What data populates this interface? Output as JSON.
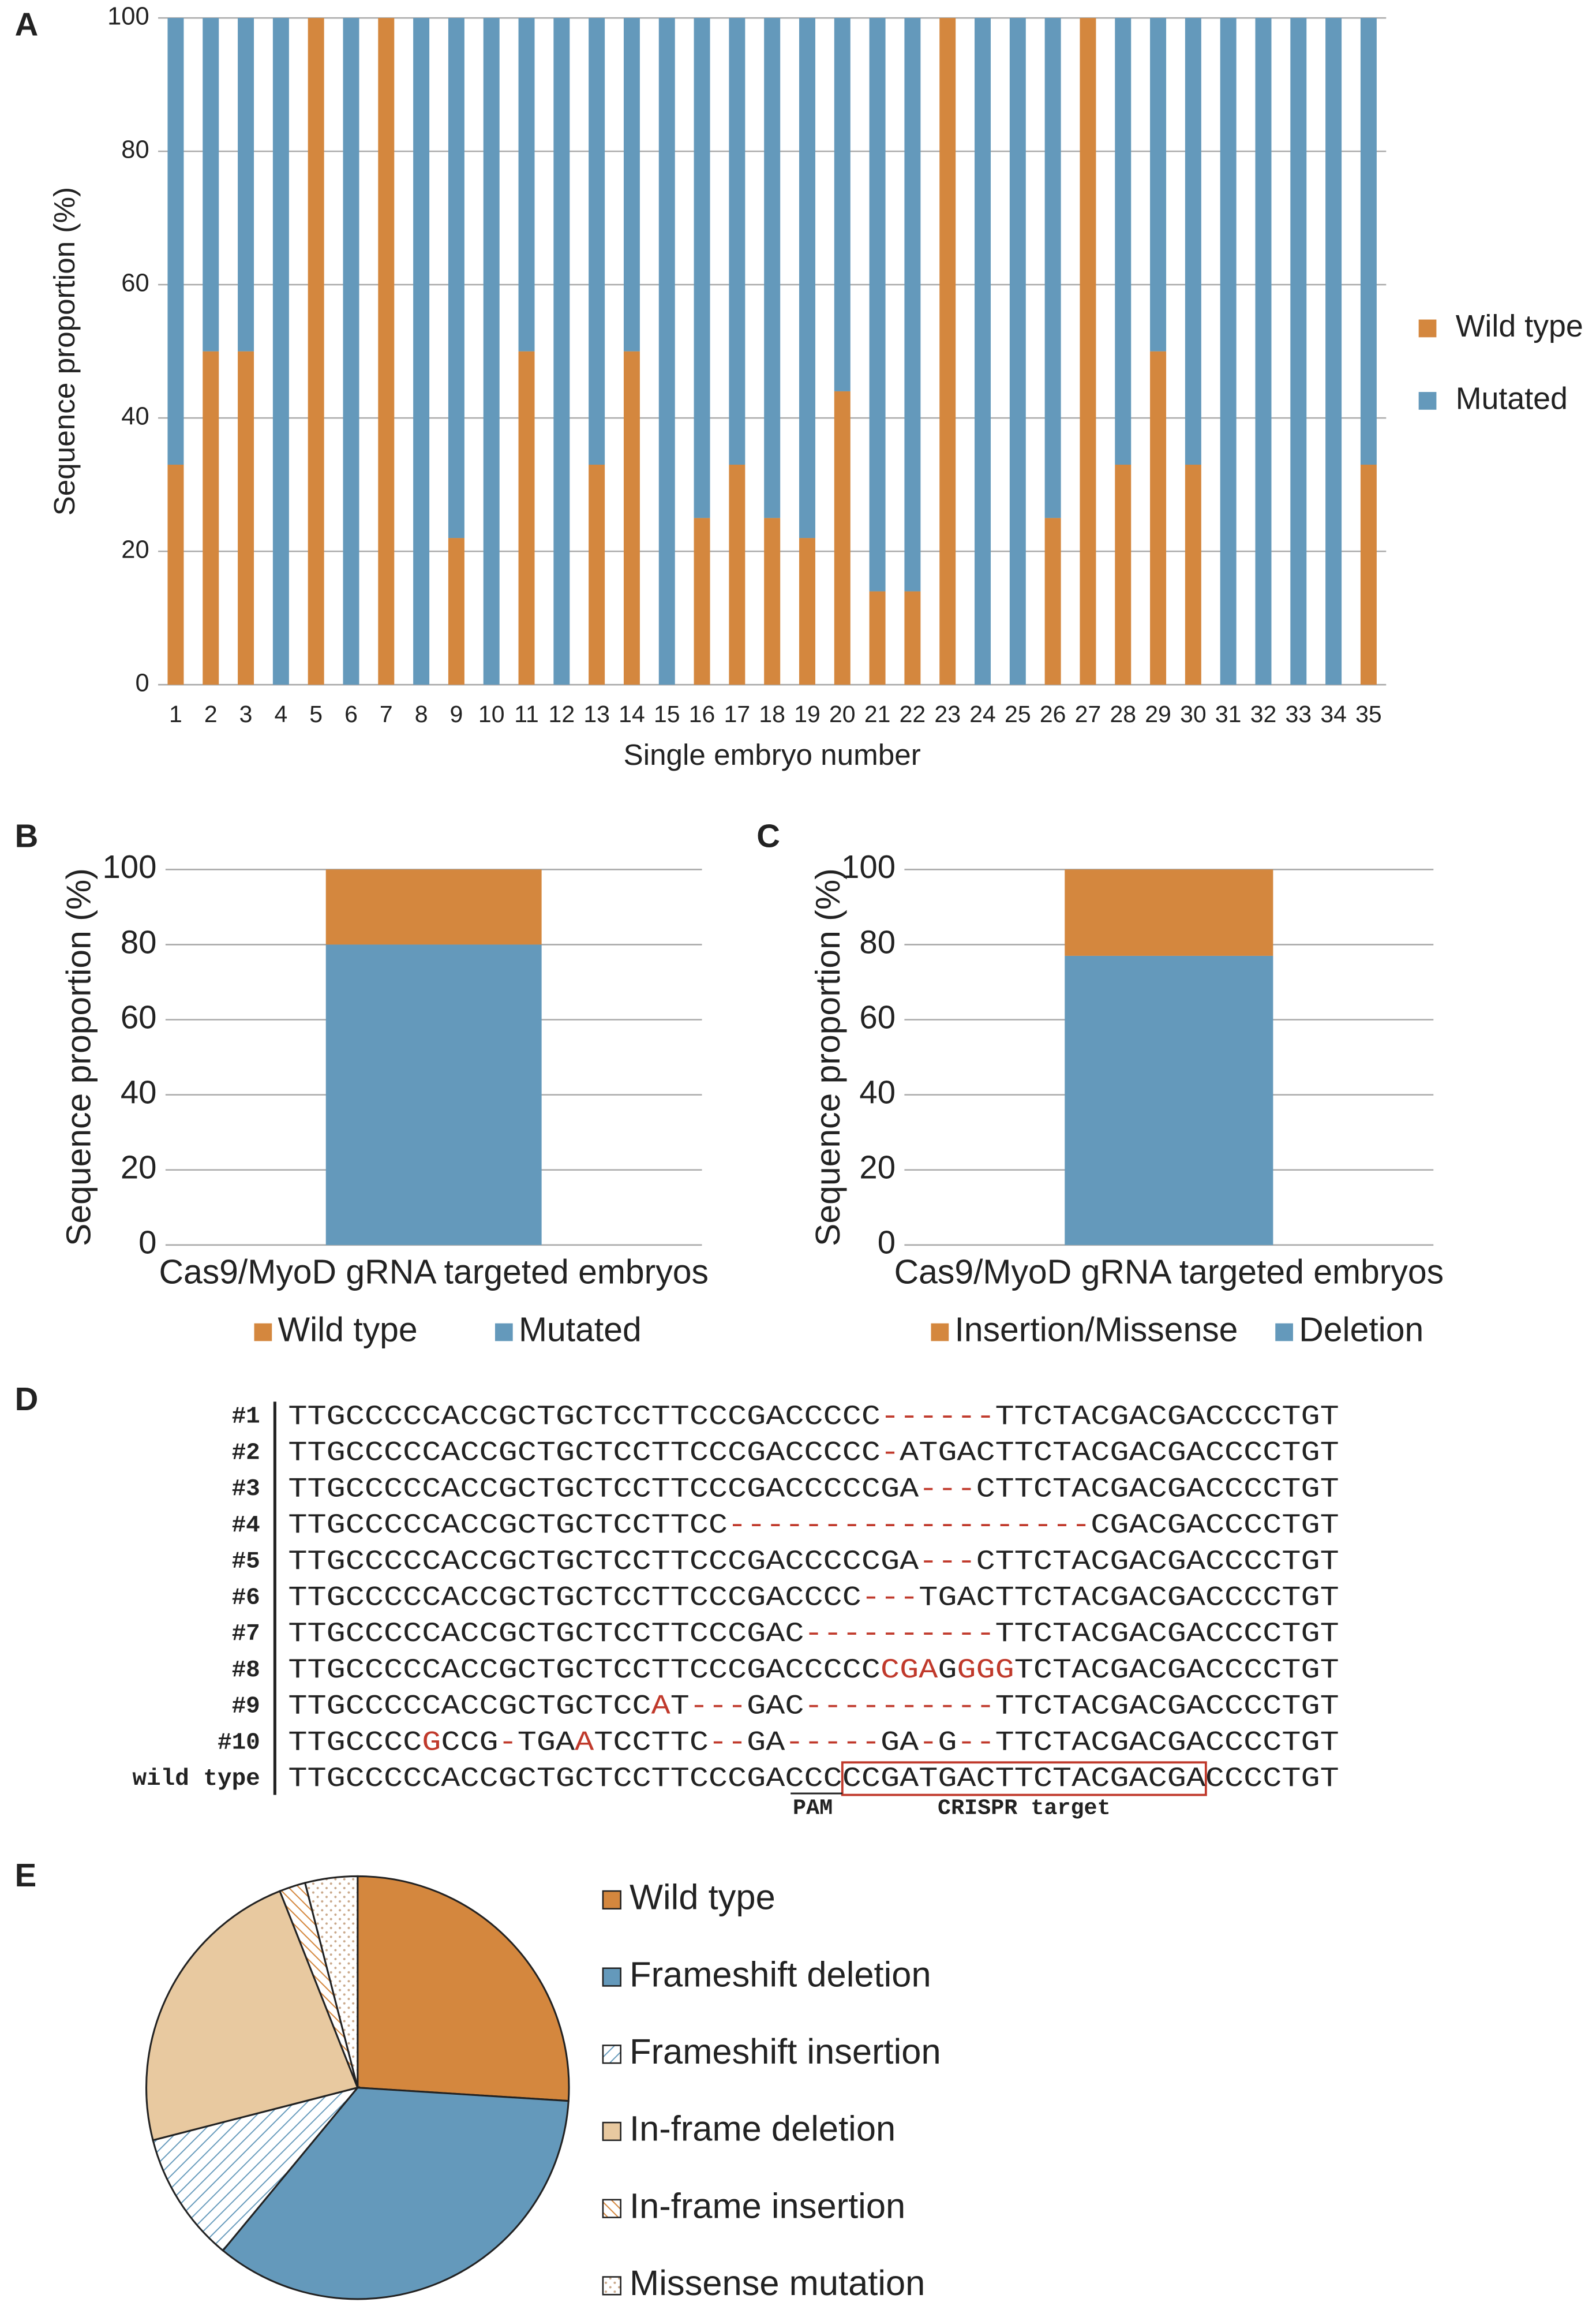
{
  "chart_data": [
    {
      "type": "bar",
      "stacked": true,
      "label": "A",
      "y_label": "Sequence proportion (%)",
      "x_label": "Single embryo number",
      "categories": [
        "1",
        "2",
        "3",
        "4",
        "5",
        "6",
        "7",
        "8",
        "9",
        "10",
        "11",
        "12",
        "13",
        "14",
        "15",
        "16",
        "17",
        "18",
        "19",
        "20",
        "21",
        "22",
        "23",
        "24",
        "25",
        "26",
        "27",
        "28",
        "29",
        "30",
        "31",
        "32",
        "33",
        "34",
        "35"
      ],
      "series": [
        {
          "name": "Wild type",
          "color": "#d4873e",
          "values": [
            33,
            50,
            50,
            0,
            100,
            0,
            100,
            0,
            22,
            0,
            50,
            0,
            33,
            50,
            0,
            25,
            33,
            25,
            22,
            44,
            14,
            14,
            100,
            0,
            0,
            25,
            100,
            33,
            50,
            33,
            0,
            0,
            0,
            0,
            33
          ]
        },
        {
          "name": "Mutated",
          "color": "#6499bb",
          "values": [
            67,
            50,
            50,
            100,
            0,
            100,
            0,
            100,
            78,
            100,
            50,
            100,
            67,
            50,
            100,
            75,
            67,
            75,
            78,
            56,
            86,
            86,
            0,
            100,
            100,
            75,
            0,
            67,
            50,
            67,
            100,
            100,
            100,
            100,
            67
          ]
        }
      ],
      "ylim": [
        0,
        100
      ],
      "yticks": [
        0,
        20,
        40,
        60,
        80,
        100
      ],
      "grid": true,
      "legend": "right"
    },
    {
      "type": "bar",
      "stacked": true,
      "label": "B",
      "y_label": "Sequence proportion (%)",
      "categories": [
        "Cas9/MyoD gRNA targeted embryos"
      ],
      "series": [
        {
          "name": "Mutated",
          "color": "#6499bb",
          "values": [
            80
          ]
        },
        {
          "name": "Wild type",
          "color": "#d4873e",
          "values": [
            20
          ]
        }
      ],
      "ylim": [
        0,
        100
      ],
      "yticks": [
        0,
        20,
        40,
        60,
        80,
        100
      ],
      "grid": true,
      "legend": "bottom"
    },
    {
      "type": "bar",
      "stacked": true,
      "label": "C",
      "y_label": "Sequence proportion (%)",
      "categories": [
        "Cas9/MyoD gRNA targeted embryos"
      ],
      "series": [
        {
          "name": "Deletion",
          "color": "#6499bb",
          "values": [
            77
          ]
        },
        {
          "name": "Insertion/Missense",
          "color": "#d4873e",
          "values": [
            23
          ]
        }
      ],
      "ylim": [
        0,
        100
      ],
      "yticks": [
        0,
        20,
        40,
        60,
        80,
        100
      ],
      "grid": true,
      "legend": "bottom"
    },
    {
      "type": "pie",
      "label": "E",
      "categories": [
        "Wild type",
        "Frameshift deletion",
        "Frameshift insertion",
        "In-frame deletion",
        "In-frame insertion",
        "Missense mutation"
      ],
      "values": [
        26,
        35,
        10,
        23,
        2,
        4
      ],
      "colors": [
        "#d4873e",
        "#6499bb",
        "#6499bb",
        "#e8c9a0",
        "#d4873e",
        "#c9a88a"
      ],
      "patterns": [
        "solid",
        "solid",
        "hatch",
        "solid",
        "hatch",
        "dots"
      ],
      "legend": "right"
    }
  ],
  "alignment": {
    "label": "D",
    "rows": [
      {
        "label": "#1",
        "segments": [
          {
            "text": "TTGCCCCCACCGCTGCTCCTTCCCGACCCCC",
            "color": "#222"
          },
          {
            "text": "------",
            "color": "#c0392b"
          },
          {
            "text": "TTCTACGACGACCCCTGT",
            "color": "#222"
          }
        ]
      },
      {
        "label": "#2",
        "segments": [
          {
            "text": "TTGCCCCCACCGCTGCTCCTTCCCGACCCCC",
            "color": "#222"
          },
          {
            "text": "-",
            "color": "#c0392b"
          },
          {
            "text": "ATGACTTCTACGACGACCCCTGT",
            "color": "#222"
          }
        ]
      },
      {
        "label": "#3",
        "segments": [
          {
            "text": "TTGCCCCCACCGCTGCTCCTTCCCGACCCCCGA",
            "color": "#222"
          },
          {
            "text": "---",
            "color": "#c0392b"
          },
          {
            "text": "CTTCTACGACGACCCCTGT",
            "color": "#222"
          }
        ]
      },
      {
        "label": "#4",
        "segments": [
          {
            "text": "TTGCCCCCACCGCTGCTCCTTCC",
            "color": "#222"
          },
          {
            "text": "-------------------",
            "color": "#c0392b"
          },
          {
            "text": "CGACGACCCCTGT",
            "color": "#222"
          }
        ]
      },
      {
        "label": "#5",
        "segments": [
          {
            "text": "TTGCCCCCACCGCTGCTCCTTCCCGACCCCCGA",
            "color": "#222"
          },
          {
            "text": "---",
            "color": "#c0392b"
          },
          {
            "text": "CTTCTACGACGACCCCTGT",
            "color": "#222"
          }
        ]
      },
      {
        "label": "#6",
        "segments": [
          {
            "text": "TTGCCCCCACCGCTGCTCCTTCCCGACCCC",
            "color": "#222"
          },
          {
            "text": "---",
            "color": "#c0392b"
          },
          {
            "text": "TGACTTCTACGACGACCCCTGT",
            "color": "#222"
          }
        ]
      },
      {
        "label": "#7",
        "segments": [
          {
            "text": "TTGCCCCCACCGCTGCTCCTTCCCGAC",
            "color": "#222"
          },
          {
            "text": "----------",
            "color": "#c0392b"
          },
          {
            "text": "TTCTACGACGACCCCTGT",
            "color": "#222"
          }
        ]
      },
      {
        "label": "#8",
        "segments": [
          {
            "text": "TTGCCCCCACCGCTGCTCCTTCCCGACCCCC",
            "color": "#222"
          },
          {
            "text": "CGA",
            "color": "#c0392b"
          },
          {
            "text": "G",
            "color": "#222"
          },
          {
            "text": "GGG",
            "color": "#c0392b"
          },
          {
            "text": "TCTACGACGACCCCTGT",
            "color": "#222"
          }
        ]
      },
      {
        "label": "#9",
        "segments": [
          {
            "text": "TTGCCCCCACCGCTGCTCC",
            "color": "#222"
          },
          {
            "text": "A",
            "color": "#c0392b"
          },
          {
            "text": "T",
            "color": "#222"
          },
          {
            "text": "---",
            "color": "#c0392b"
          },
          {
            "text": "GAC",
            "color": "#222"
          },
          {
            "text": "----------",
            "color": "#c0392b"
          },
          {
            "text": "TTCTACGACGACCCCTGT",
            "color": "#222"
          }
        ]
      },
      {
        "label": "#10",
        "segments": [
          {
            "text": "TTGCCCC",
            "color": "#222"
          },
          {
            "text": "G",
            "color": "#c0392b"
          },
          {
            "text": "CCG",
            "color": "#222"
          },
          {
            "text": "-",
            "color": "#c0392b"
          },
          {
            "text": "TGA",
            "color": "#222"
          },
          {
            "text": "A",
            "color": "#c0392b"
          },
          {
            "text": "TCCTTC",
            "color": "#222"
          },
          {
            "text": "--",
            "color": "#c0392b"
          },
          {
            "text": "GA",
            "color": "#222"
          },
          {
            "text": "-----",
            "color": "#c0392b"
          },
          {
            "text": "GA",
            "color": "#222"
          },
          {
            "text": "-",
            "color": "#c0392b"
          },
          {
            "text": "G",
            "color": "#222"
          },
          {
            "text": "--",
            "color": "#c0392b"
          },
          {
            "text": "TTCTACGACGACCCCTGT",
            "color": "#222"
          }
        ]
      },
      {
        "label": "wild type",
        "segments": [
          {
            "text": "TTGCCCCCACCGCTGCTCCTTCCCGACCCCCGATGACTTCTACGACGACCCCTGT",
            "color": "#222"
          }
        ]
      }
    ],
    "annotations": [
      "PAM",
      "CRISPR target"
    ]
  }
}
